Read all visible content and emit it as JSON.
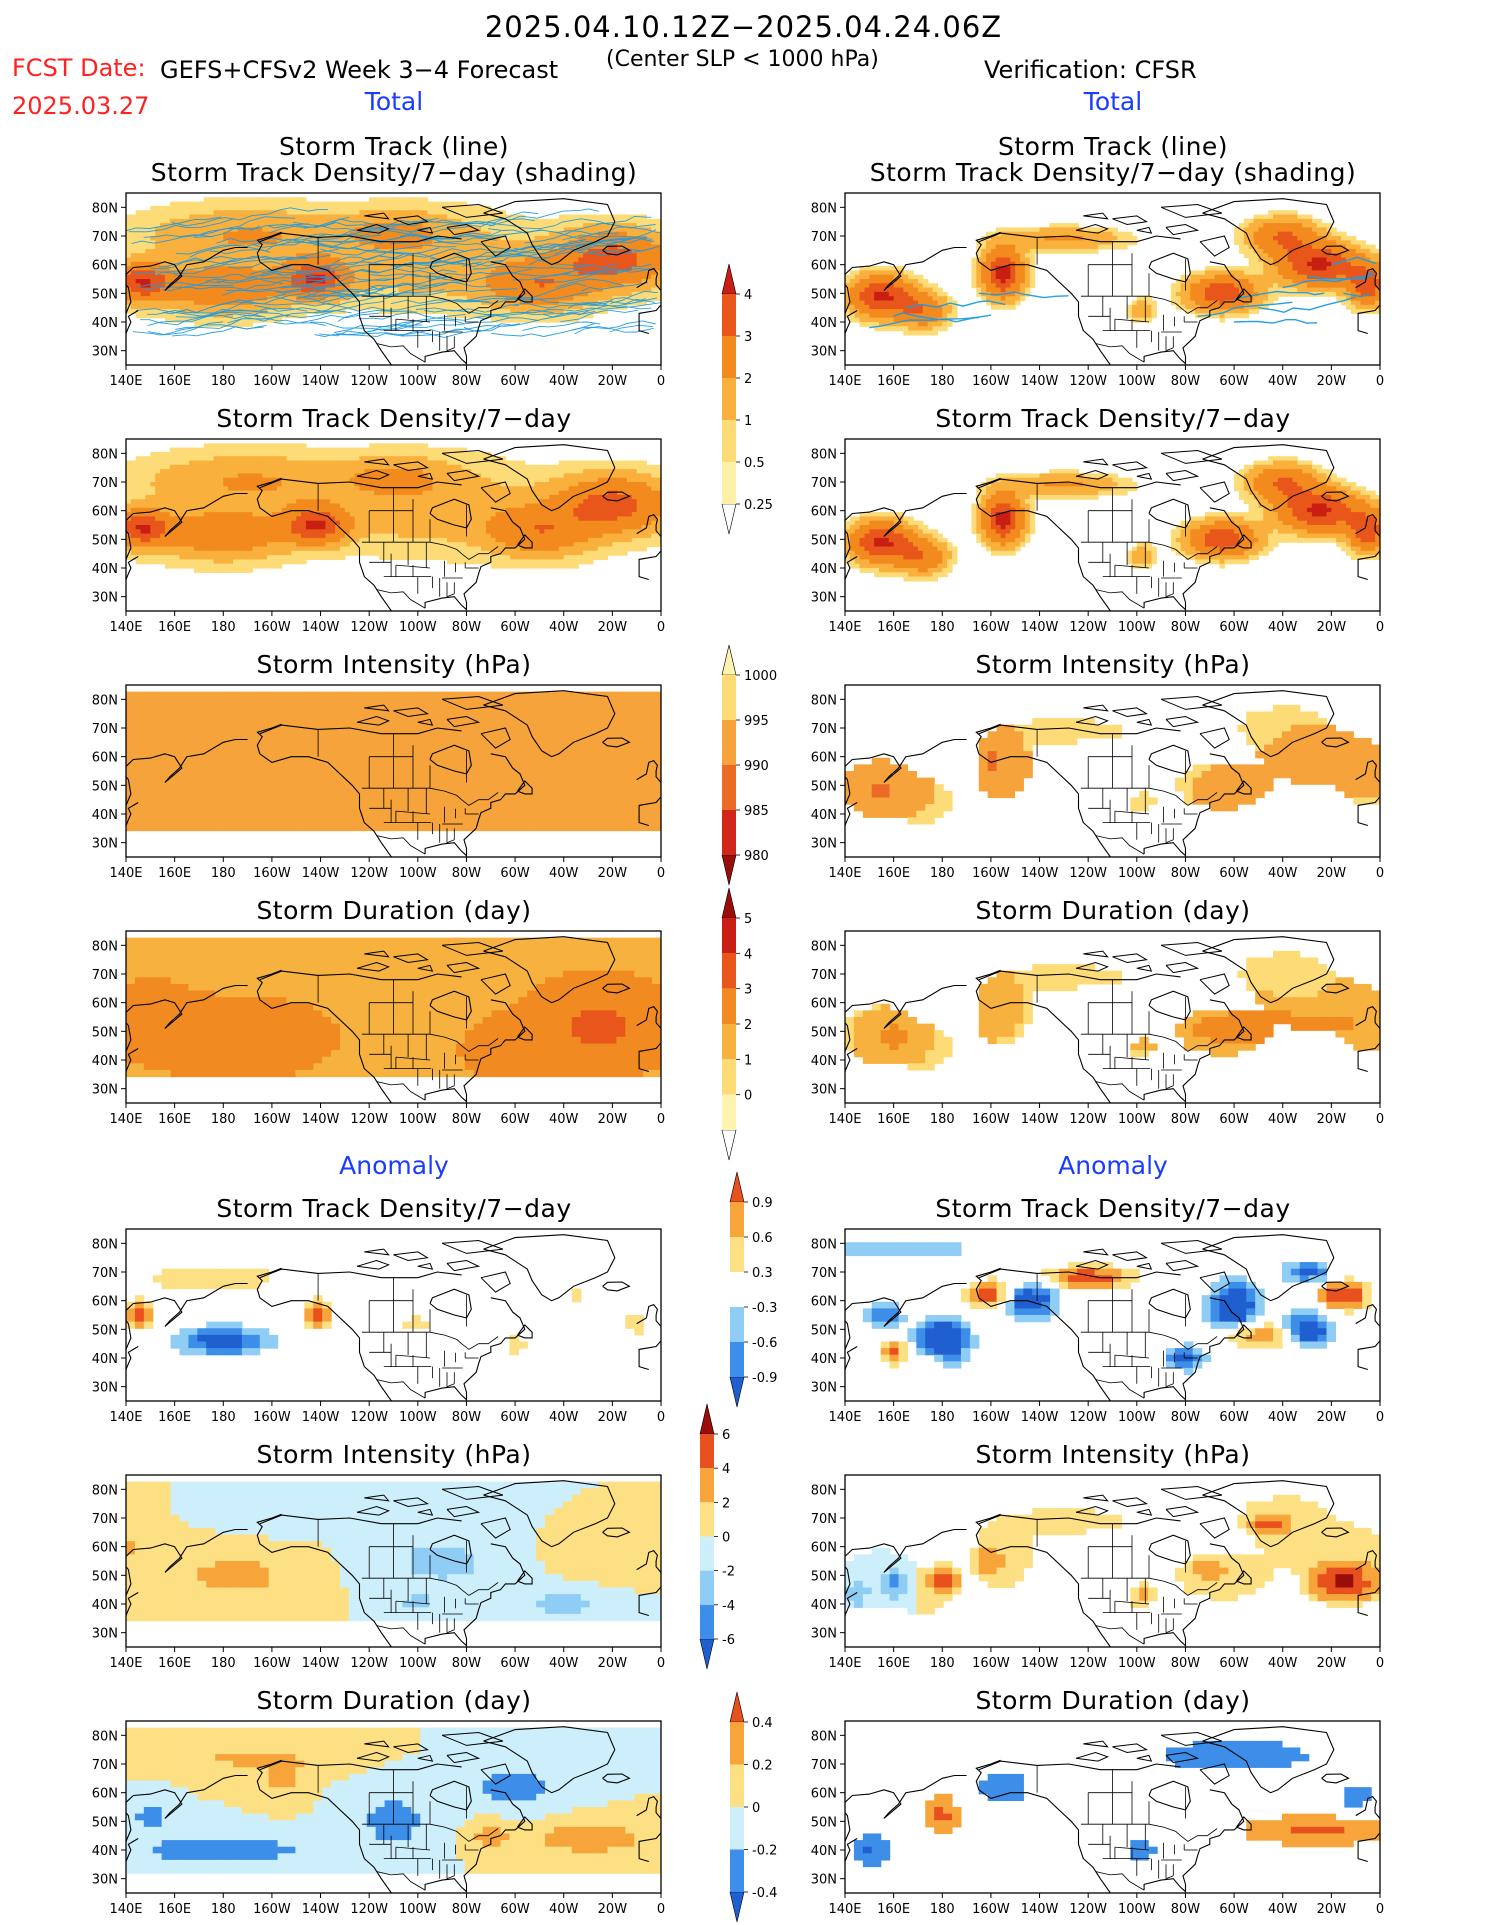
{
  "header": {
    "title": "2025.04.10.12Z−2025.04.24.06Z",
    "fcst_label": "FCST Date:",
    "fcst_date": "2025.03.27",
    "model_label": "GEFS+CFSv2 Week 3−4 Forecast",
    "slp_label": "(Center SLP < 1000 hPa)",
    "verification_label": "Verification: CFSR"
  },
  "sections": {
    "total": "Total",
    "anomaly": "Anomaly"
  },
  "panel_titles": {
    "track_line": "Storm Track (line)",
    "track_shading": "Storm Track Density/7−day (shading)",
    "track_density": "Storm Track Density/7−day",
    "intensity": "Storm Intensity (hPa)",
    "duration": "Storm Duration (day)"
  },
  "axes": {
    "lon_ticks": [
      "140E",
      "160E",
      "180",
      "160W",
      "140W",
      "120W",
      "100W",
      "80W",
      "60W",
      "40W",
      "20W",
      "0"
    ],
    "lat_ticks": [
      "80N",
      "70N",
      "60N",
      "50N",
      "40N",
      "30N"
    ]
  },
  "colors": {
    "title_red": "#ff2020",
    "section_blue": "#1a3cff",
    "track_line": "#1e9be0"
  },
  "chart_data": [
    {
      "type": "heatmap",
      "id": "density_total",
      "panels": "Storm Track Density/7-day (Total, shading)",
      "colorbar_levels": [
        "0.25",
        "0.5",
        "1",
        "2",
        "3",
        "4"
      ],
      "colors": [
        "#fff0a8",
        "#fddc78",
        "#f9b03c",
        "#f38a1e",
        "#e8561b",
        "#c91e13",
        "#9a0d0a"
      ]
    },
    {
      "type": "heatmap",
      "id": "intensity_total",
      "panels": "Storm Intensity (hPa) (Total)",
      "colorbar_levels": [
        "1000",
        "995",
        "990",
        "985",
        "980"
      ],
      "colors": [
        "#fff3b0",
        "#fddc78",
        "#f5a33a",
        "#ea6a26",
        "#d1261a",
        "#9a0d0a"
      ]
    },
    {
      "type": "heatmap",
      "id": "duration_total",
      "panels": "Storm Duration (day) (Total)",
      "colorbar_levels": [
        "0",
        "1",
        "2",
        "3",
        "4",
        "5"
      ],
      "colors": [
        "#fff3b0",
        "#fddc78",
        "#f7b13e",
        "#f28a22",
        "#e8561b",
        "#c91e13",
        "#9a0d0a"
      ]
    },
    {
      "type": "heatmap",
      "id": "density_anom",
      "panels": "Storm Track Density/7-day (Anomaly)",
      "colorbar_levels": [
        "-0.9",
        "-0.6",
        "-0.3",
        "0.3",
        "0.6",
        "0.9"
      ],
      "colors": [
        "#1f5fd0",
        "#3c8ee8",
        "#8fcdf5",
        "#ffffff",
        "#fde083",
        "#f7a53a",
        "#e8501e"
      ]
    },
    {
      "type": "heatmap",
      "id": "intensity_anom",
      "panels": "Storm Intensity (hPa) (Anomaly)",
      "colorbar_levels": [
        "-6",
        "-4",
        "-2",
        "0",
        "2",
        "4",
        "6"
      ],
      "colors": [
        "#1f5fd0",
        "#3c8ee8",
        "#8fcdf5",
        "#cdeefb",
        "#fde083",
        "#f7a53a",
        "#e8501e",
        "#9a0d0a"
      ]
    },
    {
      "type": "heatmap",
      "id": "duration_anom",
      "panels": "Storm Duration (day) (Anomaly)",
      "colorbar_levels": [
        "-0.4",
        "-0.2",
        "0",
        "0.2",
        "0.4"
      ],
      "colors": [
        "#1f5fd0",
        "#3c8ee8",
        "#cdeefb",
        "#fde083",
        "#f7a53a",
        "#e8501e"
      ]
    }
  ]
}
